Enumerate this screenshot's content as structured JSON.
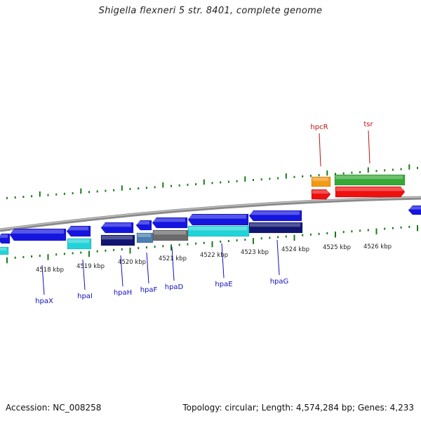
{
  "title": "Shigella flexneri 5 str. 8401, complete genome",
  "footer": {
    "accession": "Accession: NC_008258",
    "stats": "Topology: circular; Length: 4,574,284 bp; Genes: 4,233"
  },
  "colors": {
    "forward_gene": "#1515e0",
    "reverse_gene_navy": "#0f1570",
    "cyan_gene": "#22d3d8",
    "steel_gene": "#4a7fb0",
    "gray_gene": "#6a6a6a",
    "orange_gene": "#f29a12",
    "red_gene": "#f01010",
    "green_gene": "#35a835",
    "tick": "#1a7a1a",
    "blue_label": "#1010c0",
    "red_label": "#c01010"
  },
  "ruler": {
    "kbp_labels": [
      "4518 kbp",
      "4519 kbp",
      "4520 kbp",
      "4521 kbp",
      "4522 kbp",
      "4523 kbp",
      "4524 kbp",
      "4525 kbp",
      "4526 kbp"
    ]
  },
  "genes": {
    "lower_labels": [
      "hpaX",
      "hpaI",
      "hpaH",
      "hpaF",
      "hpaD",
      "hpaE",
      "hpaG"
    ],
    "upper_labels": [
      "hpcR",
      "tsr"
    ]
  }
}
